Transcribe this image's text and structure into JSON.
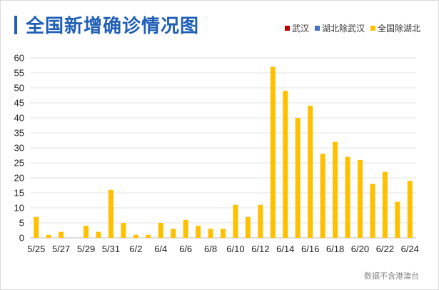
{
  "title": "全国新增确诊情况图",
  "source": "数据不含港澳台",
  "legend": [
    {
      "label": "武汉",
      "color": "#c00000"
    },
    {
      "label": "湖北除武汉",
      "color": "#4472c4"
    },
    {
      "label": "全国除湖北",
      "color": "#ffc000"
    }
  ],
  "chart_data": {
    "type": "bar",
    "title": "全国新增确诊情况图",
    "xlabel": "",
    "ylabel": "",
    "ylim": [
      0,
      60
    ],
    "yticks": [
      0,
      5,
      10,
      15,
      20,
      25,
      30,
      35,
      40,
      45,
      50,
      55,
      60
    ],
    "grid": true,
    "legend_position": "top-right",
    "categories": [
      "5/25",
      "5/26",
      "5/27",
      "5/28",
      "5/29",
      "5/30",
      "5/31",
      "6/1",
      "6/2",
      "6/3",
      "6/4",
      "6/5",
      "6/6",
      "6/7",
      "6/8",
      "6/9",
      "6/10",
      "6/11",
      "6/12",
      "6/13",
      "6/14",
      "6/15",
      "6/16",
      "6/17",
      "6/18",
      "6/19",
      "6/20",
      "6/21",
      "6/22",
      "6/23",
      "6/24"
    ],
    "tick_labels": [
      "5/25",
      "5/27",
      "5/29",
      "5/31",
      "6/2",
      "6/4",
      "6/6",
      "6/8",
      "6/10",
      "6/12",
      "6/14",
      "6/16",
      "6/18",
      "6/20",
      "6/22",
      "6/24"
    ],
    "series": [
      {
        "name": "武汉",
        "color": "#c00000",
        "values": [
          0,
          0,
          0,
          0,
          0,
          0,
          0,
          0,
          0,
          0,
          0,
          0,
          0,
          0,
          0,
          0,
          0,
          0,
          0,
          0,
          0,
          0,
          0,
          0,
          0,
          0,
          0,
          0,
          0,
          0,
          0
        ]
      },
      {
        "name": "湖北除武汉",
        "color": "#4472c4",
        "values": [
          0,
          0,
          0,
          0,
          0,
          0,
          0,
          0,
          0,
          0,
          0,
          0,
          0,
          0,
          0,
          0,
          0,
          0,
          0,
          0,
          0,
          0,
          0,
          0,
          0,
          0,
          0,
          0,
          0,
          0,
          0
        ]
      },
      {
        "name": "全国除湖北",
        "color": "#ffc000",
        "values": [
          7,
          1,
          2,
          0,
          4,
          2,
          16,
          5,
          1,
          1,
          5,
          3,
          6,
          4,
          3,
          3,
          11,
          7,
          11,
          57,
          49,
          40,
          44,
          28,
          32,
          27,
          26,
          18,
          22,
          12,
          19
        ]
      }
    ]
  }
}
